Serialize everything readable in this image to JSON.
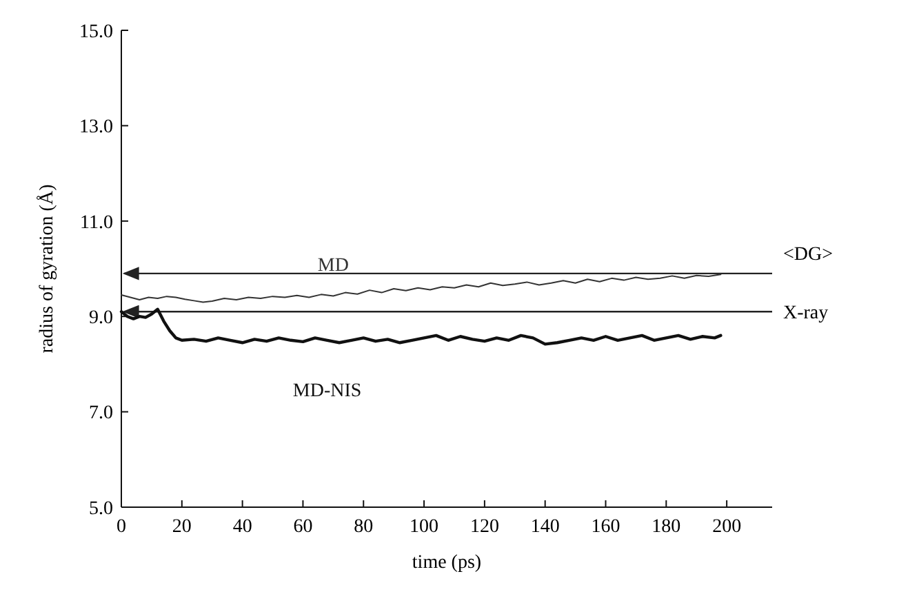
{
  "chart_data": {
    "type": "line",
    "xlabel": "time  (ps)",
    "ylabel": "radius  of  gyration  (Å)",
    "xlim": [
      0,
      215
    ],
    "ylim": [
      5,
      15
    ],
    "xticks": [
      0,
      20,
      40,
      60,
      80,
      100,
      120,
      140,
      160,
      180,
      200
    ],
    "yticks": [
      {
        "value": 5,
        "label": "5.0"
      },
      {
        "value": 7,
        "label": "7.0"
      },
      {
        "value": 9,
        "label": "9.0"
      },
      {
        "value": 11,
        "label": "11.0"
      },
      {
        "value": 13,
        "label": "13.0"
      },
      {
        "value": 15,
        "label": "15.0"
      }
    ],
    "series": [
      {
        "name": "MD",
        "color": "#333333",
        "line_style": "solid",
        "x": [
          0,
          3,
          6,
          9,
          12,
          15,
          18,
          21,
          24,
          27,
          30,
          34,
          38,
          42,
          46,
          50,
          54,
          58,
          62,
          66,
          70,
          74,
          78,
          82,
          86,
          90,
          94,
          98,
          102,
          106,
          110,
          114,
          118,
          122,
          126,
          130,
          134,
          138,
          142,
          146,
          150,
          154,
          158,
          162,
          166,
          170,
          174,
          178,
          182,
          186,
          190,
          194,
          198
        ],
        "values": [
          9.45,
          9.4,
          9.35,
          9.4,
          9.38,
          9.42,
          9.4,
          9.36,
          9.33,
          9.3,
          9.32,
          9.38,
          9.35,
          9.4,
          9.38,
          9.42,
          9.4,
          9.44,
          9.4,
          9.46,
          9.43,
          9.5,
          9.47,
          9.55,
          9.5,
          9.58,
          9.54,
          9.6,
          9.56,
          9.62,
          9.6,
          9.66,
          9.62,
          9.7,
          9.65,
          9.68,
          9.72,
          9.66,
          9.7,
          9.75,
          9.7,
          9.78,
          9.73,
          9.8,
          9.76,
          9.82,
          9.78,
          9.8,
          9.85,
          9.8,
          9.86,
          9.84,
          9.88
        ]
      },
      {
        "name": "MD-NIS",
        "color": "#111111",
        "line_style": "solid",
        "x": [
          0,
          2,
          4,
          6,
          8,
          10,
          12,
          14,
          16,
          18,
          20,
          24,
          28,
          32,
          36,
          40,
          44,
          48,
          52,
          56,
          60,
          64,
          68,
          72,
          76,
          80,
          84,
          88,
          92,
          96,
          100,
          104,
          108,
          112,
          116,
          120,
          124,
          128,
          132,
          136,
          140,
          144,
          148,
          152,
          156,
          160,
          164,
          168,
          172,
          176,
          180,
          184,
          188,
          192,
          196,
          198
        ],
        "values": [
          9.1,
          9.0,
          8.95,
          9.0,
          8.98,
          9.05,
          9.15,
          8.9,
          8.7,
          8.55,
          8.5,
          8.52,
          8.48,
          8.55,
          8.5,
          8.45,
          8.52,
          8.48,
          8.55,
          8.5,
          8.47,
          8.55,
          8.5,
          8.45,
          8.5,
          8.55,
          8.48,
          8.52,
          8.45,
          8.5,
          8.55,
          8.6,
          8.5,
          8.58,
          8.52,
          8.48,
          8.55,
          8.5,
          8.6,
          8.55,
          8.42,
          8.45,
          8.5,
          8.55,
          8.5,
          8.58,
          8.5,
          8.55,
          8.6,
          8.5,
          8.55,
          8.6,
          8.52,
          8.58,
          8.55,
          8.6
        ]
      }
    ],
    "ref_lines": [
      {
        "axis": "y",
        "value": 9.9,
        "label": "<DG>",
        "color": "#222222"
      },
      {
        "axis": "y",
        "value": 9.1,
        "label": "X-ray",
        "color": "#222222"
      }
    ],
    "grid": false,
    "marker": "none"
  }
}
